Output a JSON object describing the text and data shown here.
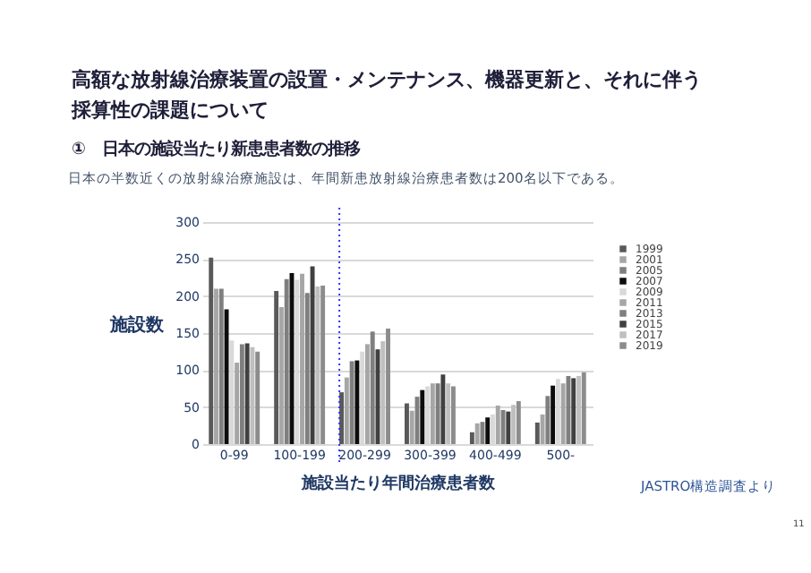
{
  "chart_data": {
    "type": "bar",
    "title": "高額な放射線治療装置の設置・メンテナンス、機器更新と、それに伴う採算性の課題について",
    "subtitle": "①　日本の施設当たり新患患者数の推移",
    "xlabel": "施設当たり年間治療患者数",
    "ylabel": "施設数",
    "annotations": [
      "日本の半数近くの放射線治療施設は、年間新患放射線治療患者数は200名以下である。",
      "JASTRO構造調査より",
      "11"
    ],
    "categories": [
      "0-99",
      "100-199",
      "200-299",
      "300-399",
      "400-499",
      "500-"
    ],
    "series": [
      {
        "name": "1999",
        "color": "#595959",
        "values": [
          252,
          207,
          70,
          55,
          16,
          29
        ]
      },
      {
        "name": "2001",
        "color": "#a6a6a6",
        "values": [
          210,
          185,
          90,
          45,
          28,
          40
        ]
      },
      {
        "name": "2005",
        "color": "#7f7f7f",
        "values": [
          210,
          223,
          112,
          64,
          30,
          65
        ]
      },
      {
        "name": "2007",
        "color": "#0d0d0d",
        "values": [
          182,
          231,
          113,
          73,
          36,
          79
        ]
      },
      {
        "name": "2009",
        "color": "#d9d9d9",
        "values": [
          140,
          222,
          125,
          78,
          40,
          88
        ]
      },
      {
        "name": "2011",
        "color": "#a6a6a6",
        "values": [
          110,
          230,
          135,
          82,
          52,
          82
        ]
      },
      {
        "name": "2013",
        "color": "#7f7f7f",
        "values": [
          135,
          204,
          152,
          82,
          46,
          92
        ]
      },
      {
        "name": "2015",
        "color": "#404040",
        "values": [
          136,
          240,
          128,
          94,
          44,
          89
        ]
      },
      {
        "name": "2017",
        "color": "#bfbfbf",
        "values": [
          131,
          213,
          139,
          82,
          53,
          92
        ]
      },
      {
        "name": "2019",
        "color": "#8c8c8c",
        "values": [
          125,
          214,
          156,
          78,
          58,
          97
        ]
      }
    ],
    "ylim": [
      0,
      300
    ],
    "yticks": [
      0,
      50,
      100,
      150,
      200,
      250,
      300
    ],
    "grid": "y",
    "legend": "right",
    "ref_lines": [
      {
        "axis": "x",
        "value": "200-299",
        "color": "#3333ff",
        "line_style": "dotted"
      }
    ]
  }
}
